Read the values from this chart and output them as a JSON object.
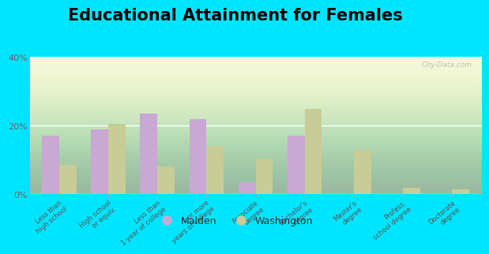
{
  "title": "Educational Attainment for Females",
  "categories": [
    "Less than\nhigh school",
    "High school\nor equiv.",
    "Less than\n1 year of college",
    "1 or more\nyears of college",
    "Associate\ndegree",
    "Bachelor's\ndegree",
    "Master's\ndegree",
    "Profess.\nschool degree",
    "Doctorate\ndegree"
  ],
  "malden": [
    17.0,
    19.0,
    23.5,
    22.0,
    3.5,
    17.0,
    0.0,
    0.0,
    0.0
  ],
  "washington": [
    8.5,
    20.5,
    8.0,
    14.0,
    10.5,
    25.0,
    13.0,
    2.0,
    1.5
  ],
  "malden_color": "#c9a8d4",
  "washington_color": "#c8cc96",
  "outer_bg": "#00e5ff",
  "ylim": [
    0,
    40
  ],
  "yticks": [
    0,
    20,
    40
  ],
  "ytick_labels": [
    "0%",
    "20%",
    "40%"
  ],
  "legend_malden": "Malden",
  "legend_washington": "Washington",
  "title_fontsize": 15,
  "watermark": "City-Data.com",
  "bar_width": 0.35
}
